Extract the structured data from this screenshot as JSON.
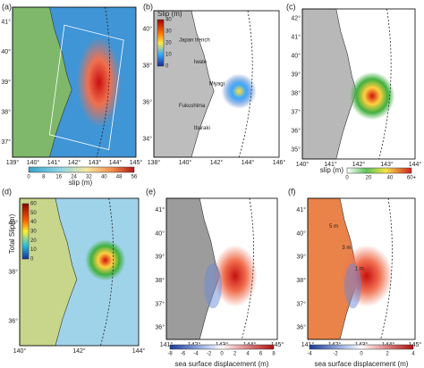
{
  "panels": [
    {
      "label": "(a)",
      "yticks": [
        "41°",
        "40°",
        "39°",
        "38°",
        "37°"
      ],
      "xticks": [
        "139°",
        "140°",
        "141°",
        "142°",
        "143°",
        "144°",
        "145°"
      ],
      "colorbar": {
        "title": "slip (m)",
        "ticks": [
          "0",
          "8",
          "16",
          "24",
          "32",
          "40",
          "48",
          "56"
        ]
      }
    },
    {
      "label": "(b)",
      "yticks": [
        "40°",
        "38°",
        "36°",
        "34°"
      ],
      "xticks": [
        "138°",
        "140°",
        "142°",
        "144°",
        "146°"
      ],
      "colorbar": {
        "title": "Slip (m)",
        "ticks": [
          "40",
          "30",
          "20",
          "10",
          "0"
        ]
      },
      "annotations": [
        "Japan trench",
        "Iwate",
        "Miyagi",
        "Fukushima",
        "Ibaraki"
      ]
    },
    {
      "label": "(c)",
      "yticks": [
        "42°",
        "41°",
        "40°",
        "39°",
        "38°",
        "37°",
        "36°",
        "35°"
      ],
      "xticks": [
        "140°",
        "141°",
        "142°",
        "143°",
        "144°"
      ],
      "colorbar": {
        "title": "slip (m)",
        "ticks": [
          "0",
          "20",
          "40",
          "60+"
        ]
      }
    },
    {
      "label": "(d)",
      "yticks": [
        "40°",
        "38°",
        "36°"
      ],
      "xticks": [
        "140°",
        "142°",
        "144°"
      ],
      "colorbar": {
        "title": "Total Slip(m)",
        "ticks": [
          "60",
          "50",
          "40",
          "30",
          "20",
          "10",
          "0"
        ]
      }
    },
    {
      "label": "(e)",
      "yticks": [
        "41°",
        "40°",
        "39°",
        "38°",
        "37°",
        "36°"
      ],
      "xticks": [
        "141°",
        "142°",
        "143°",
        "144°",
        "145°"
      ],
      "colorbar": {
        "title": "sea surface displacement (m)",
        "ticks": [
          "-8",
          "-6",
          "-4",
          "-2",
          "0",
          "2",
          "4",
          "6",
          "8"
        ]
      }
    },
    {
      "label": "(f)",
      "yticks": [
        "41°",
        "40°",
        "39°",
        "38°",
        "37°",
        "36°"
      ],
      "xticks": [
        "141°",
        "142°",
        "143°",
        "144°",
        "145°"
      ],
      "colorbar": {
        "title": "sea surface displacement (m)",
        "ticks": [
          "-4",
          "-2",
          "0",
          "2",
          "4"
        ]
      },
      "annotations": [
        "5 m",
        "3 m",
        "1 m"
      ]
    }
  ]
}
